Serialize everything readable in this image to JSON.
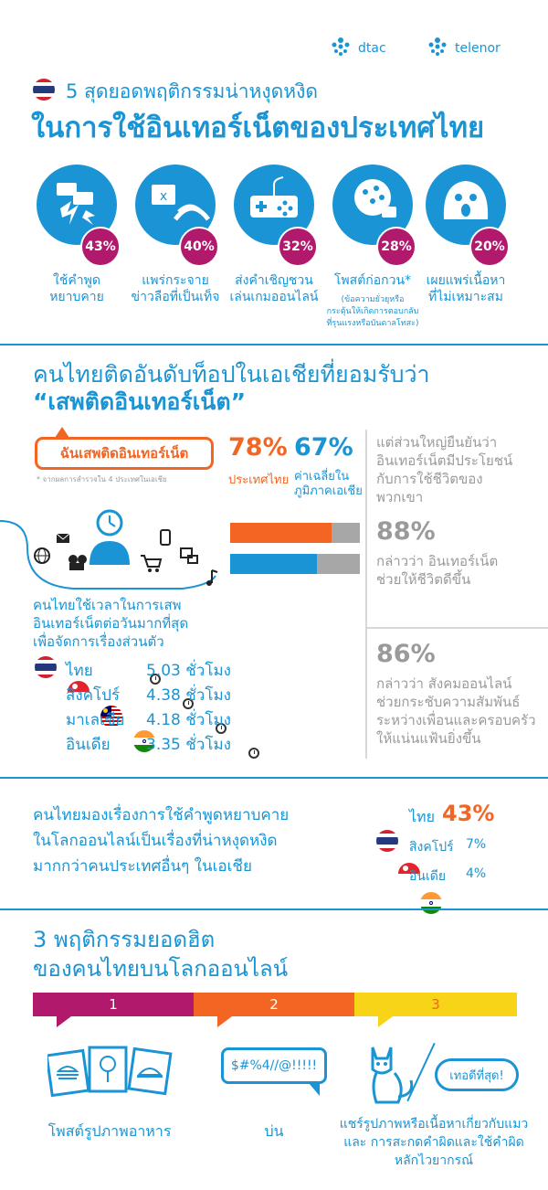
{
  "brands": {
    "dtac": "dtac",
    "telenor": "telenor"
  },
  "header": {
    "subtitle": "5 สุดยอดพฤติกรรมน่าหงุดหงิด",
    "title": "ในการใช้อินเทอร์เน็ตของประเทศไทย"
  },
  "behaviors": [
    {
      "icon": "speech-bubbles-lightning-icon",
      "percent": "43%",
      "label": "ใช้คำพูด\nหยาบคาย"
    },
    {
      "icon": "chat-rumor-wifi-icon",
      "percent": "40%",
      "label": "แพร่กระจาย\nข่าวลือที่เป็นเท็จ"
    },
    {
      "icon": "game-controller-icon",
      "percent": "32%",
      "label": "ส่งคำเชิญชวน\nเล่นเกมออนไลน์"
    },
    {
      "icon": "brain-network-icon",
      "percent": "28%",
      "label": "โพสต์ก่อกวน*",
      "note": "(ข้อความยั่วยุหรือ\nกระตุ้นให้เกิดการตอบกลับ\nที่รุนแรงหรือบันดาลโทสะ)"
    },
    {
      "icon": "shocked-face-icon",
      "percent": "20%",
      "label": "เผยแพร่เนื้อหา\nที่ไม่เหมาะสม"
    }
  ],
  "addiction": {
    "heading1": "คนไทยติดอันดับท็อปในเอเชียที่ยอมรับว่า",
    "heading2": "“เสพติดอินเทอร์เน็ต”",
    "callout": "ฉันเสพติดอินเทอร์เน็ต",
    "footnote": "* จากผลการสำรวจใน 4 ประเทศในเอเชีย",
    "thai_pct": "78%",
    "thai_label": "ประเทศไทย",
    "avg_pct": "67%",
    "avg_label": "ค่าเฉลี่ยใน\nภูมิภาคเอเชีย",
    "bars": [
      {
        "value": 78,
        "color": "#f26522"
      },
      {
        "value": 67,
        "color": "#1a94d4"
      }
    ]
  },
  "side_stats": {
    "intro": "แต่ส่วนใหญ่ยืนยันว่า\nอินเทอร์เน็ตมีประโยชน์\nกับการใช้ชีวิตของ\nพวกเขา",
    "stat1_pct": "88%",
    "stat1_text": "กล่าวว่า อินเทอร์เน็ต\nช่วยให้ชีวิตดีขึ้น",
    "stat2_pct": "86%",
    "stat2_text": "กล่าวว่า สังคมออนไลน์\nช่วยกระชับความสัมพันธ์\nระหว่างเพื่อนและครอบครัว\nให้แน่นแฟ้นยิ่งขึ้น"
  },
  "usage": {
    "text": "คนไทยใช้เวลาในการเสพ\nอินเทอร์เน็ตต่อวันมากที่สุด\nเพื่อจัดการเรื่องส่วนตัว",
    "rows": [
      {
        "country": "ไทย",
        "hours": "5.03 ชั่วโมง",
        "flag": "thai"
      },
      {
        "country": "สิงคโปร์",
        "hours": "4.38 ชั่วโมง",
        "flag": "singapore"
      },
      {
        "country": "มาเลเซีย",
        "hours": "4.18 ชั่วโมง",
        "flag": "malaysia"
      },
      {
        "country": "อินเดีย",
        "hours": "3.35 ชั่วโมง",
        "flag": "india"
      }
    ]
  },
  "rudeness": {
    "text": "คนไทยมองเรื่องการใช้คำพูดหยาบคาย\nในโลกออนไลน์เป็นเรื่องที่น่าหงุดหงิด\nมากกว่าคนประเทศอื่นๆ ในเอเชีย",
    "rows": [
      {
        "country": "ไทย",
        "pct": "43%",
        "flag": "thai"
      },
      {
        "country": "สิงคโปร์",
        "pct": "7%",
        "flag": "singapore"
      },
      {
        "country": "อินเดีย",
        "pct": "4%",
        "flag": "india"
      }
    ]
  },
  "top3": {
    "heading1": "3 พฤติกรรมยอดฮิต",
    "heading2": "ของคนไทยบนโลกออนไลน์",
    "ranks": [
      "1",
      "2",
      "3"
    ],
    "ribbon_colors": [
      "#b0196c",
      "#f26522",
      "#f7d417"
    ],
    "items": [
      {
        "icon": "food-photos-icon",
        "label": "โพสต์รูปภาพอาหาร"
      },
      {
        "icon": "complaint-bubble-icon",
        "label": "บ่น",
        "bubble": "$#%4//@!!!!!"
      },
      {
        "icon": "cat-icon",
        "label": "แชร์รูปภาพหรือเนื้อหาเกี่ยวกับแมว\nและ การสะกดคำผิดและใช้คำผิด\nหลักไวยากรณ์",
        "bubble": "เทอดีที่สุด!"
      }
    ]
  }
}
